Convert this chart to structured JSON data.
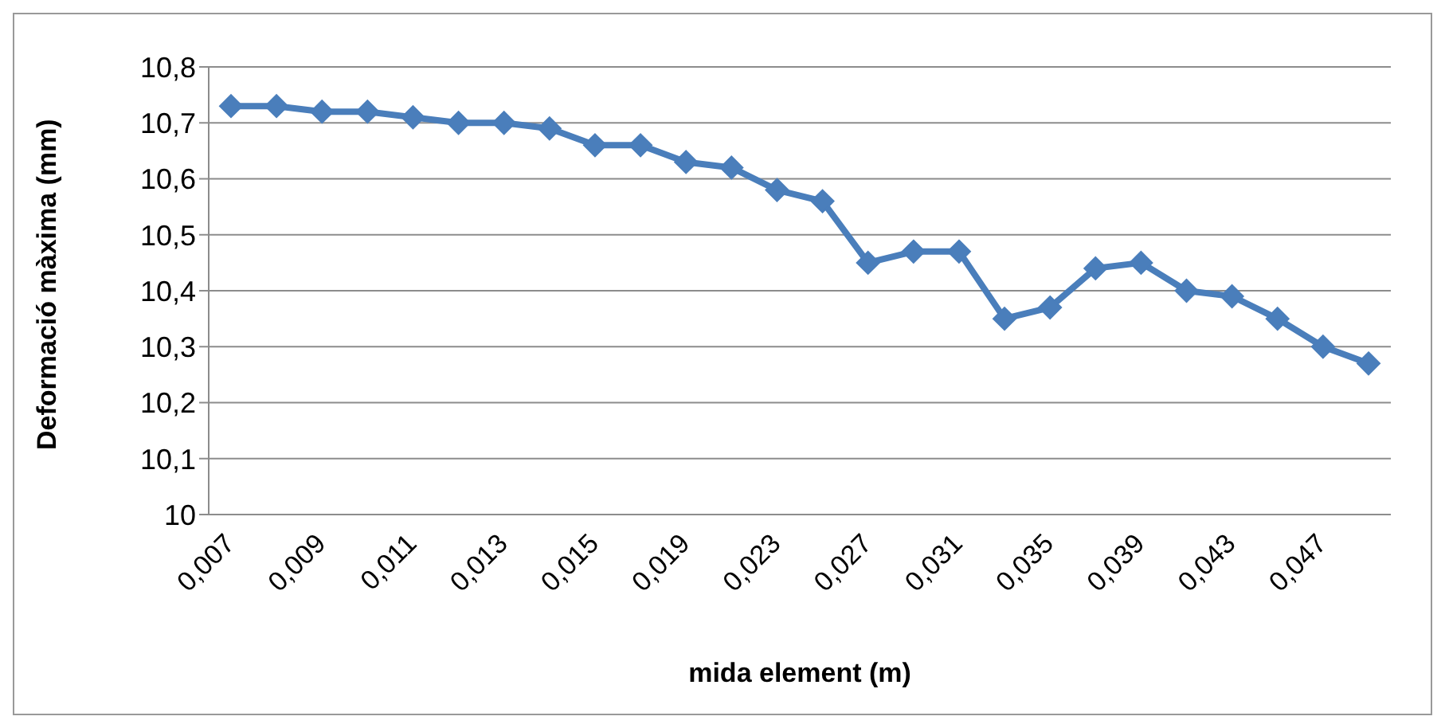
{
  "chart_data": {
    "type": "line",
    "xlabel": "mida element (m)",
    "ylabel": "Deformació màxima (mm)",
    "categories": [
      "0,007",
      null,
      "0,009",
      null,
      "0,011",
      null,
      "0,013",
      null,
      "0,015",
      null,
      "0,019",
      null,
      "0,023",
      null,
      "0,027",
      null,
      "0,031",
      null,
      "0,035",
      null,
      "0,039",
      null,
      "0,043",
      null,
      "0,047",
      null
    ],
    "series": [
      {
        "color": "#4a7ebb",
        "values": [
          10.73,
          10.73,
          10.72,
          10.72,
          10.71,
          10.7,
          10.7,
          10.69,
          10.66,
          10.66,
          10.63,
          10.62,
          10.58,
          10.56,
          10.45,
          10.47,
          10.47,
          10.35,
          10.37,
          10.44,
          10.45,
          10.4,
          10.39,
          10.35,
          10.3,
          10.27
        ]
      }
    ],
    "ylim": [
      10,
      10.8
    ],
    "yticks": [
      10,
      {
        "value": 10.1,
        "label": "10,1"
      },
      {
        "value": 10.2,
        "label": "10,2"
      },
      {
        "value": 10.3,
        "label": "10,3"
      },
      {
        "value": 10.4,
        "label": "10,4"
      },
      {
        "value": 10.5,
        "label": "10,5"
      },
      {
        "value": 10.6,
        "label": "10,6"
      },
      {
        "value": 10.7,
        "label": "10,7"
      },
      {
        "value": 10.8,
        "label": "10,8"
      }
    ],
    "grid": "y",
    "marker": "diamond",
    "line_style": "solid",
    "legend": false
  }
}
